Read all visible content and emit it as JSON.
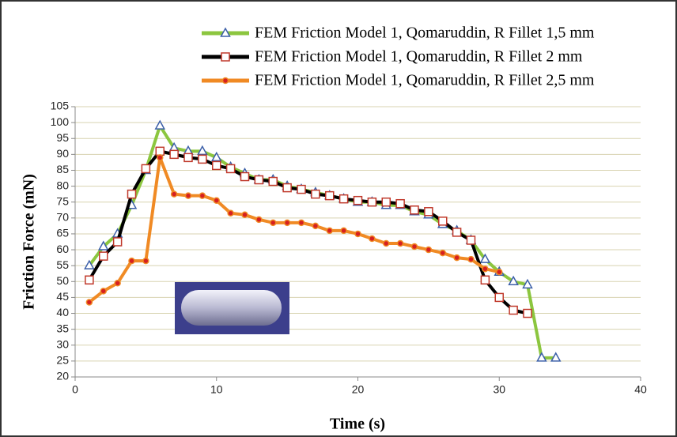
{
  "chart_data": {
    "type": "line",
    "xlabel": "Time (s)",
    "ylabel": "Friction Force (mN)",
    "xlim": [
      0,
      40
    ],
    "xticks": [
      0,
      10,
      20,
      30,
      40
    ],
    "ylim": [
      20,
      105
    ],
    "yticks": [
      20,
      25,
      30,
      35,
      40,
      45,
      50,
      55,
      60,
      65,
      70,
      75,
      80,
      85,
      90,
      95,
      100,
      105
    ],
    "grid": true,
    "legend": "top-right",
    "series": [
      {
        "name": "FEM Friction Model 1, Qomaruddin, R Fillet 1,5 mm",
        "color": "#8cc63f",
        "marker": "triangle",
        "marker_color": "#3b5fa8",
        "x": [
          1,
          2,
          3,
          4,
          5,
          6,
          7,
          8,
          9,
          10,
          11,
          12,
          13,
          14,
          15,
          16,
          17,
          18,
          19,
          20,
          21,
          22,
          23,
          24,
          25,
          26,
          27,
          28,
          29,
          30,
          31,
          32,
          33,
          34
        ],
        "values": [
          55,
          61,
          65,
          74,
          85,
          99,
          92,
          91,
          91,
          89,
          86,
          84,
          82,
          82,
          80,
          79,
          78,
          77,
          76,
          75,
          75,
          74,
          74,
          72,
          71,
          68,
          66,
          63,
          57,
          53,
          50,
          49,
          26,
          26
        ]
      },
      {
        "name": "FEM Friction Model 1, Qomaruddin, R Fillet 2 mm",
        "color": "#000000",
        "marker": "square",
        "marker_color": "#c0392b",
        "x": [
          1,
          2,
          3,
          4,
          5,
          6,
          7,
          8,
          9,
          10,
          11,
          12,
          13,
          14,
          15,
          16,
          17,
          18,
          19,
          20,
          21,
          22,
          23,
          24,
          25,
          26,
          27,
          28,
          29,
          30,
          31,
          32
        ],
        "values": [
          50.5,
          58,
          62.5,
          77.5,
          85.5,
          91,
          90,
          89,
          88.5,
          86.5,
          85.5,
          83,
          82,
          81.5,
          79.5,
          79,
          77.5,
          77,
          76,
          75.5,
          75,
          75,
          74.5,
          72.5,
          72,
          69,
          65.5,
          63,
          50.5,
          45,
          41,
          40
        ]
      },
      {
        "name": "FEM Friction Model 1, Qomaruddin, R Fillet 2,5 mm",
        "color": "#f08a24",
        "marker": "circle",
        "marker_color": "#d62020",
        "x": [
          1,
          2,
          3,
          4,
          5,
          6,
          7,
          8,
          9,
          10,
          11,
          12,
          13,
          14,
          15,
          16,
          17,
          18,
          19,
          20,
          21,
          22,
          23,
          24,
          25,
          26,
          27,
          28,
          29,
          30
        ],
        "values": [
          43.5,
          47,
          49.5,
          56.5,
          56.5,
          89,
          77.5,
          77,
          77,
          75.5,
          71.5,
          71,
          69.5,
          68.5,
          68.5,
          68.5,
          67.5,
          66,
          66,
          65,
          63.5,
          62,
          62,
          61,
          60,
          59,
          57.5,
          57,
          54,
          53
        ]
      }
    ]
  }
}
